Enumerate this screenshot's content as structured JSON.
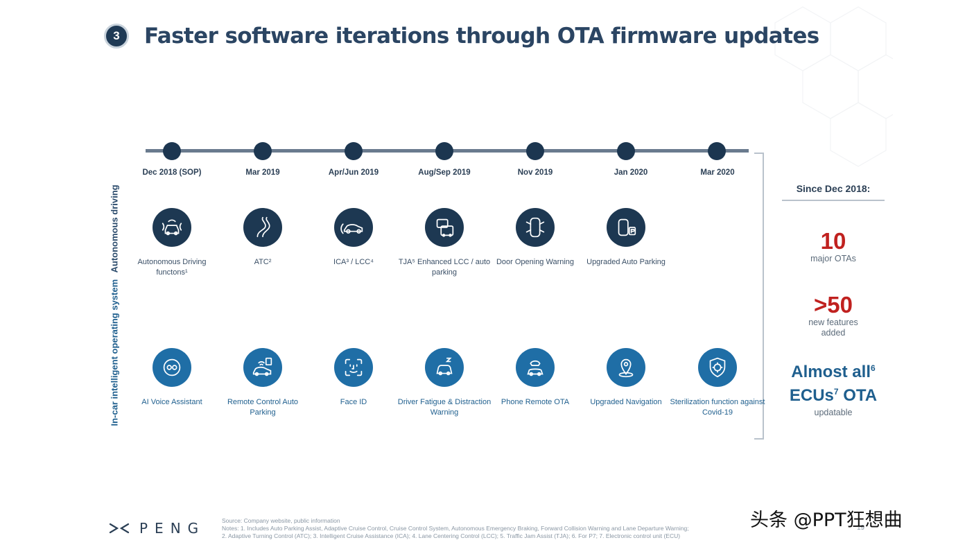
{
  "slide": {
    "number": "3",
    "title": "Faster software iterations through OTA firmware updates"
  },
  "timeline": {
    "dates": [
      "Dec 2018 (SOP)",
      "Mar 2019",
      "Apr/Jun 2019",
      "Aug/Sep 2019",
      "Nov 2019",
      "Jan 2020",
      "Mar 2020"
    ]
  },
  "rows": {
    "autonomous": {
      "label": "Autonomous driving",
      "features": [
        {
          "label": "Autonomous Driving functons¹",
          "icon": "sensor-car-icon"
        },
        {
          "label": "ATC²",
          "icon": "curved-road-icon"
        },
        {
          "label": "ICA³ / LCC⁴",
          "icon": "car-side-icon"
        },
        {
          "label": "TJA⁵ Enhanced LCC / auto parking",
          "icon": "traffic-jam-icon"
        },
        {
          "label": "Door Opening Warning",
          "icon": "car-top-doors-icon"
        },
        {
          "label": "Upgraded Auto Parking",
          "icon": "parking-car-icon"
        }
      ]
    },
    "incar": {
      "label": "In-car intelligent operating system",
      "features": [
        {
          "label": "AI Voice Assistant",
          "icon": "voice-assistant-icon"
        },
        {
          "label": "Remote Control Auto Parking",
          "icon": "remote-parking-icon"
        },
        {
          "label": "Face ID",
          "icon": "face-id-icon"
        },
        {
          "label": "Driver Fatigue & Distraction Warning",
          "icon": "drowsy-driver-icon"
        },
        {
          "label": "Phone Remote OTA",
          "icon": "phone-car-icon"
        },
        {
          "label": "Upgraded Navigation",
          "icon": "map-pin-icon"
        },
        {
          "label": "Sterilization function against Covid-19",
          "icon": "shield-virus-icon"
        }
      ]
    }
  },
  "summary": {
    "heading": "Since Dec 2018:",
    "ota_count": "10",
    "ota_label": "major OTAs",
    "features_count": ">50",
    "features_label_1": "new features",
    "features_label_2": "added",
    "ecu_line1": "Almost all",
    "ecu_sup1": "6",
    "ecu_line2a": "ECUs",
    "ecu_sup2": "7",
    "ecu_line2b": " OTA",
    "ecu_label": "updatable"
  },
  "footer": {
    "brand": "PENG",
    "source": "Source: Company website, public information",
    "notes_1": "Notes: 1. Includes Auto Parking Assist, Adaptive Cruise Control, Cruise Control System, Autonomous Emergency Braking, Forward Collision Warning and Lane Departure Warning;",
    "notes_2": "2. Adaptive Turning Control (ATC); 3. Intelligent Cruise Assistance (ICA); 4. Lane Centering Control (LCC); 5. Traffic Jam Assist (TJA); 6. For P7; 7. Electronic control unit (ECU)",
    "page": "19",
    "watermark": "头条 @PPT狂想曲"
  },
  "colors": {
    "navy": "#1d3852",
    "blue": "#1f6ea6",
    "red": "#c0211f",
    "title": "#2b4563"
  }
}
